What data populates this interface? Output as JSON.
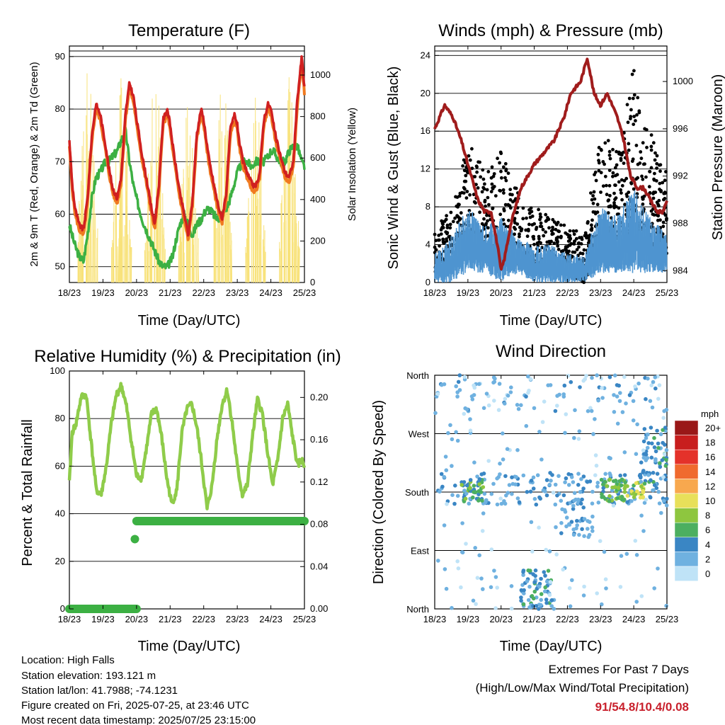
{
  "time_ticks": [
    "18/23",
    "19/23",
    "20/23",
    "21/23",
    "22/23",
    "23/23",
    "24/23",
    "25/23"
  ],
  "info": {
    "location": "Location: High Falls",
    "elevation": "Station elevation: 193.121 m",
    "latlon": "Station lat/lon: 41.7988; -74.1231",
    "created": "Figure created on Fri, 2025-07-25, at 23:46 UTC",
    "recent": "Most recent data timestamp: 2025/07/25 23:15:00"
  },
  "extremes": {
    "title": "Extremes For Past 7 Days",
    "subtitle": "(High/Low/Max Wind/Total Precipitation)",
    "values": "91/54.8/10.4/0.08"
  },
  "colors": {
    "temp_2m": "#d02020",
    "temp_9m": "#f07a20",
    "dewpoint": "#3cb043",
    "solar": "#f8e27a",
    "sonic_wind": "#4f95d0",
    "gust": "#000000",
    "pressure": "#a01c1c",
    "rh": "#8fcc4a",
    "rain": "#3cb043"
  },
  "chart_data": [
    {
      "type": "line",
      "title": "Temperature (F)",
      "xlabel": "Time (Day/UTC)",
      "ylabel": "2m & 9m T (Red, Orange) & 2m Td (Green)",
      "y2label": "Solar Insolation (Yellow)",
      "ylim": [
        47,
        92
      ],
      "y2lim": [
        0,
        1140
      ],
      "yticks": [
        "50",
        "60",
        "70",
        "80",
        "90"
      ],
      "y2ticks": [
        "0",
        "200",
        "400",
        "600",
        "800",
        "1000"
      ],
      "x": [
        0,
        0.08,
        0.17,
        0.29,
        0.42,
        0.54,
        0.67,
        0.79,
        0.92,
        1.0,
        1.08,
        1.17,
        1.29,
        1.42,
        1.54,
        1.67,
        1.79,
        1.92,
        2.0,
        2.08,
        2.17,
        2.29,
        2.42,
        2.54,
        2.67,
        2.79,
        2.92,
        3.0,
        3.08,
        3.17,
        3.29,
        3.42,
        3.54,
        3.67,
        3.79,
        3.92,
        4.0,
        4.08,
        4.17,
        4.29,
        4.42,
        4.54,
        4.67,
        4.79,
        4.92,
        5.0,
        5.08,
        5.17,
        5.29,
        5.42,
        5.54,
        5.67,
        5.79,
        5.92,
        6.0,
        6.08,
        6.17,
        6.29,
        6.42,
        6.54,
        6.67,
        6.79,
        6.92,
        7.0
      ],
      "series": [
        {
          "name": "2m T",
          "values": [
            74,
            66,
            61,
            58,
            57,
            63,
            75,
            81,
            79,
            76,
            73,
            69,
            65,
            63,
            67,
            79,
            85,
            82,
            78,
            75,
            71,
            67,
            62,
            58,
            66,
            78,
            80,
            77,
            73,
            69,
            64,
            60,
            56,
            63,
            75,
            80,
            78,
            74,
            70,
            66,
            62,
            59,
            64,
            76,
            79,
            77,
            73,
            70,
            68,
            66,
            65,
            68,
            78,
            81,
            80,
            77,
            74,
            71,
            68,
            67,
            70,
            82,
            90,
            84
          ]
        },
        {
          "name": "9m T",
          "values": [
            73,
            65,
            60,
            57,
            56,
            62,
            74,
            80,
            78,
            75,
            72,
            68,
            64,
            62,
            66,
            78,
            84,
            81,
            77,
            74,
            70,
            66,
            61,
            57,
            65,
            77,
            79,
            76,
            72,
            68,
            63,
            59,
            55,
            62,
            74,
            79,
            77,
            73,
            69,
            65,
            61,
            58,
            63,
            75,
            78,
            76,
            72,
            69,
            67,
            65,
            64,
            67,
            77,
            80,
            79,
            76,
            73,
            70,
            67,
            66,
            69,
            81,
            89,
            83
          ]
        },
        {
          "name": "2m Td",
          "values": [
            58,
            56,
            54,
            52,
            51,
            56,
            63,
            67,
            68,
            69,
            70,
            70,
            71,
            72,
            74,
            76,
            70,
            65,
            63,
            61,
            59,
            57,
            55,
            53,
            51,
            50,
            50,
            51,
            52,
            55,
            58,
            60,
            58,
            56,
            58,
            59,
            60,
            61,
            61,
            60,
            59,
            60,
            61,
            63,
            66,
            68,
            69,
            70,
            70,
            69,
            70,
            70,
            70,
            71,
            72,
            72,
            71,
            70,
            70,
            72,
            73,
            73,
            70,
            69
          ]
        }
      ],
      "solar_peaks": [
        {
          "x": 0.6,
          "values": [
            0,
            1140
          ]
        },
        {
          "x": 1.6,
          "values": [
            0,
            1020
          ]
        },
        {
          "x": 2.6,
          "values": [
            0,
            1000
          ]
        },
        {
          "x": 3.6,
          "values": [
            0,
            960
          ]
        },
        {
          "x": 4.6,
          "values": [
            0,
            1060
          ]
        },
        {
          "x": 5.6,
          "values": [
            0,
            940
          ]
        },
        {
          "x": 6.6,
          "values": [
            0,
            1000
          ]
        }
      ]
    },
    {
      "type": "scatter",
      "title": "Winds (mph) & Pressure (mb)",
      "xlabel": "Time (Day/UTC)",
      "ylabel": "Sonic Wind & Gust (Blue, Black)",
      "y2label": "Station Pressure (Maroon)",
      "ylim": [
        0,
        25
      ],
      "y2lim": [
        983,
        1003
      ],
      "yticks": [
        "0",
        "4",
        "8",
        "12",
        "16",
        "20",
        "24"
      ],
      "y2ticks": [
        "984",
        "988",
        "992",
        "996",
        "1000"
      ],
      "pressure": {
        "x": [
          0,
          0.3,
          0.55,
          0.8,
          1.0,
          1.3,
          1.5,
          1.7,
          1.9,
          2.0,
          2.1,
          2.3,
          2.6,
          2.8,
          3.0,
          3.3,
          3.6,
          3.9,
          4.1,
          4.4,
          4.6,
          4.8,
          5.0,
          5.2,
          5.5,
          5.7,
          5.9,
          6.1,
          6.3,
          6.5,
          6.7,
          6.9,
          7.0
        ],
        "values": [
          996,
          998,
          997,
          995,
          993,
          990,
          989,
          989,
          986,
          984,
          985,
          988,
          991,
          992,
          993,
          994,
          995,
          997,
          999,
          1000,
          1002,
          999,
          998,
          999,
          997,
          995,
          992,
          991,
          991,
          990,
          989,
          989,
          990
        ]
      },
      "gust_envelope": [
        {
          "x": 0.0,
          "lo": 1,
          "hi": 6
        },
        {
          "x": 0.5,
          "lo": 2,
          "hi": 8
        },
        {
          "x": 1.0,
          "lo": 4,
          "hi": 15
        },
        {
          "x": 1.5,
          "lo": 3,
          "hi": 12
        },
        {
          "x": 2.0,
          "lo": 2,
          "hi": 14
        },
        {
          "x": 2.5,
          "lo": 2,
          "hi": 10
        },
        {
          "x": 3.0,
          "lo": 1,
          "hi": 8
        },
        {
          "x": 3.5,
          "lo": 1,
          "hi": 7
        },
        {
          "x": 4.0,
          "lo": 1,
          "hi": 6
        },
        {
          "x": 4.5,
          "lo": 0,
          "hi": 5
        },
        {
          "x": 5.0,
          "lo": 4,
          "hi": 16
        },
        {
          "x": 5.5,
          "lo": 4,
          "hi": 14
        },
        {
          "x": 6.0,
          "lo": 5,
          "hi": 23
        },
        {
          "x": 6.5,
          "lo": 4,
          "hi": 16
        },
        {
          "x": 7.0,
          "lo": 3,
          "hi": 12
        }
      ],
      "wind_envelope": [
        {
          "x": 0.0,
          "lo": 0,
          "hi": 3
        },
        {
          "x": 0.5,
          "lo": 0,
          "hi": 5
        },
        {
          "x": 1.0,
          "lo": 1,
          "hi": 8
        },
        {
          "x": 1.5,
          "lo": 1,
          "hi": 6
        },
        {
          "x": 2.0,
          "lo": 0,
          "hi": 7
        },
        {
          "x": 2.5,
          "lo": 1,
          "hi": 5
        },
        {
          "x": 3.0,
          "lo": 0,
          "hi": 4
        },
        {
          "x": 3.5,
          "lo": 0,
          "hi": 4
        },
        {
          "x": 4.0,
          "lo": 0,
          "hi": 3
        },
        {
          "x": 4.5,
          "lo": 0,
          "hi": 3
        },
        {
          "x": 5.0,
          "lo": 1,
          "hi": 8
        },
        {
          "x": 5.5,
          "lo": 1,
          "hi": 7
        },
        {
          "x": 6.0,
          "lo": 1,
          "hi": 10
        },
        {
          "x": 6.5,
          "lo": 1,
          "hi": 7
        },
        {
          "x": 7.0,
          "lo": 1,
          "hi": 5
        }
      ]
    },
    {
      "type": "line",
      "title": "Relative Humidity (%) & Precipitation (in)",
      "xlabel": "Time (Day/UTC)",
      "ylabel": "Percent & Total Rainfall",
      "ylim": [
        0,
        100
      ],
      "y2lim": [
        0,
        0.225
      ],
      "yticks": [
        "0",
        "20",
        "40",
        "60",
        "80",
        "100"
      ],
      "y2ticks": [
        "0.00",
        "0.04",
        "0.08",
        "0.12",
        "0.16",
        "0.20"
      ],
      "rh": {
        "x": [
          0,
          0.08,
          0.2,
          0.35,
          0.5,
          0.65,
          0.8,
          0.95,
          1.1,
          1.25,
          1.4,
          1.55,
          1.7,
          1.85,
          2.0,
          2.15,
          2.3,
          2.45,
          2.6,
          2.75,
          2.9,
          3.05,
          3.2,
          3.35,
          3.5,
          3.65,
          3.8,
          3.95,
          4.1,
          4.25,
          4.4,
          4.55,
          4.7,
          4.85,
          5.0,
          5.15,
          5.3,
          5.45,
          5.6,
          5.75,
          5.9,
          6.05,
          6.2,
          6.35,
          6.5,
          6.65,
          6.8,
          6.9,
          7.0
        ],
        "values": [
          53,
          74,
          78,
          89,
          90,
          70,
          50,
          48,
          60,
          78,
          90,
          94,
          85,
          70,
          56,
          55,
          68,
          82,
          84,
          72,
          55,
          44,
          50,
          74,
          84,
          86,
          76,
          60,
          42,
          52,
          72,
          86,
          92,
          78,
          60,
          48,
          52,
          72,
          88,
          82,
          66,
          52,
          62,
          80,
          86,
          72,
          60,
          63,
          60
        ]
      },
      "rain": [
        {
          "x0": 0.0,
          "x1": 2.0,
          "value": 0.0
        },
        {
          "x0": 1.95,
          "x1": 1.95,
          "value": 0.066
        },
        {
          "x0": 2.0,
          "x1": 7.0,
          "value": 0.083
        }
      ]
    },
    {
      "type": "scatter",
      "title": "Wind Direction",
      "xlabel": "Time (Day/UTC)",
      "ylabel": "Direction (Colored By Speed)",
      "yticks": [
        "North",
        "East",
        "South",
        "West",
        "North"
      ],
      "legend_title": "mph",
      "legend": [
        "20+",
        "18",
        "16",
        "14",
        "12",
        "10",
        "8",
        "6",
        "4",
        "2",
        "0"
      ],
      "legend_colors": [
        "#9a1818",
        "#c81e1e",
        "#e4322a",
        "#f06a2e",
        "#f8a84e",
        "#e8e05a",
        "#8ec63f",
        "#4caf60",
        "#3a86c4",
        "#6fb1e0",
        "#bfe3f7"
      ],
      "clusters": [
        {
          "x0": 0.0,
          "x1": 7.0,
          "y0": 160,
          "y1": 210,
          "count": 160,
          "speed": [
            1,
            5
          ]
        },
        {
          "x0": 0.8,
          "x1": 1.5,
          "y0": 165,
          "y1": 200,
          "count": 40,
          "speed": [
            4,
            8
          ]
        },
        {
          "x0": 5.0,
          "x1": 5.8,
          "y0": 165,
          "y1": 200,
          "count": 45,
          "speed": [
            5,
            9
          ]
        },
        {
          "x0": 5.8,
          "x1": 6.3,
          "y0": 170,
          "y1": 195,
          "count": 25,
          "speed": [
            6,
            11
          ]
        },
        {
          "x0": 6.2,
          "x1": 7.0,
          "y0": 190,
          "y1": 280,
          "count": 60,
          "speed": [
            2,
            6
          ]
        },
        {
          "x0": 3.8,
          "x1": 4.8,
          "y0": 110,
          "y1": 170,
          "count": 40,
          "speed": [
            1,
            4
          ]
        },
        {
          "x0": 2.6,
          "x1": 3.6,
          "y0": 0,
          "y1": 60,
          "count": 70,
          "speed": [
            1,
            6
          ]
        },
        {
          "x0": 0.0,
          "x1": 7.0,
          "y0": 300,
          "y1": 360,
          "count": 90,
          "speed": [
            0,
            4
          ]
        },
        {
          "x0": 0.0,
          "x1": 7.0,
          "y0": 0,
          "y1": 360,
          "count": 160,
          "speed": [
            0,
            3
          ]
        }
      ]
    }
  ]
}
